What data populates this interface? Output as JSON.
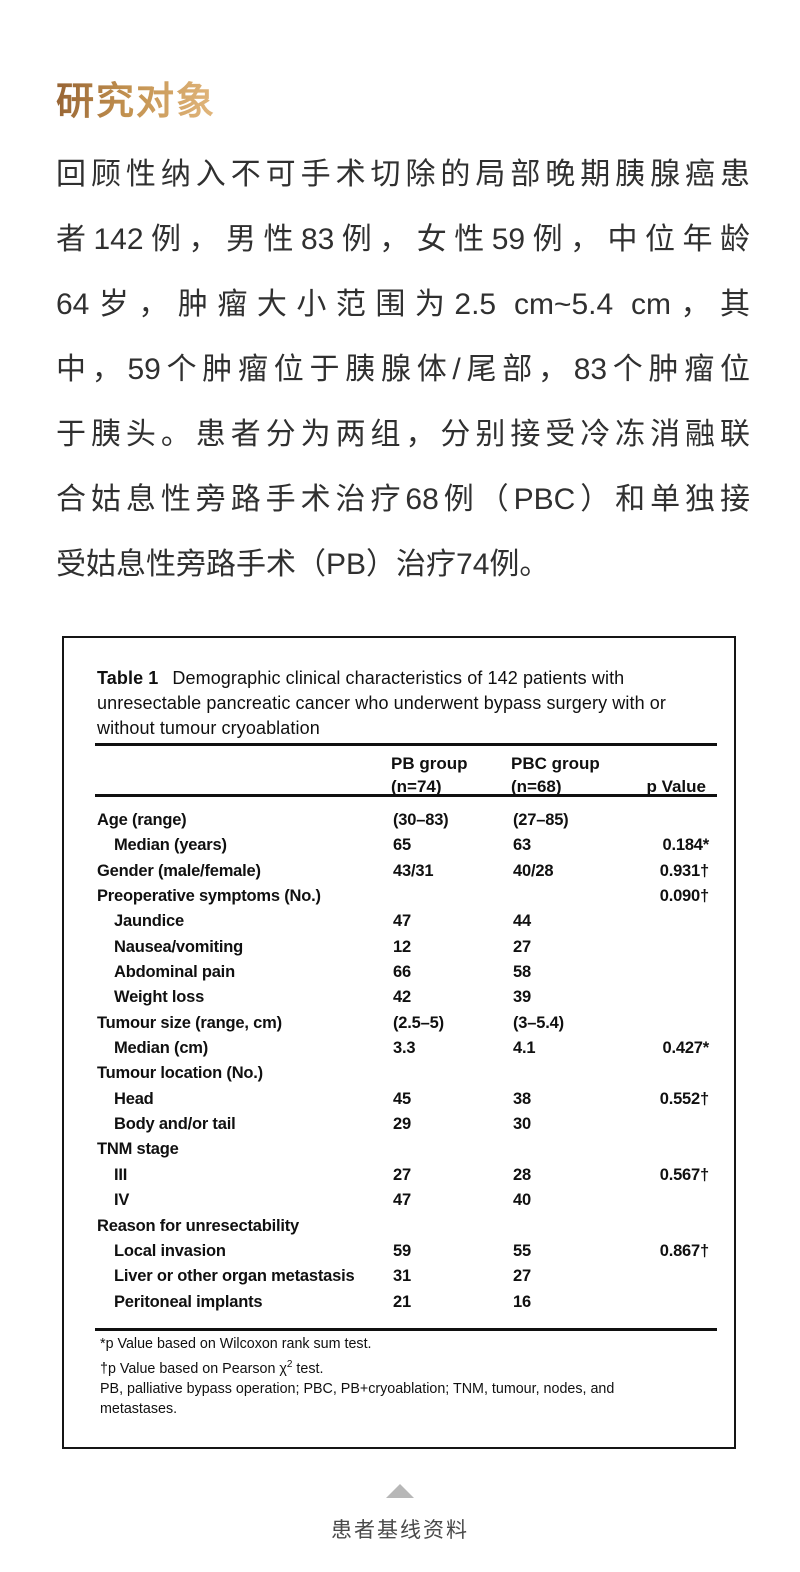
{
  "page": {
    "heading": "研究对象",
    "paragraph_lines": [
      "回顾性纳入不可手术切除的局部晚期胰腺癌患",
      "者142例，男性83例，女性59例，中位年龄",
      "64岁，肿瘤大小范围为2.5 cm~5.4 cm，其",
      "中，59个肿瘤位于胰腺体/尾部，83个肿瘤位",
      "于胰头。患者分为两组，分别接受冷冻消融联",
      "合姑息性旁路手术治疗68例（PBC）和单独接",
      "受姑息性旁路手术（PB）治疗74例。"
    ],
    "colors": {
      "heading_gold_start": "#956233",
      "heading_gold_end": "#e3b87e",
      "body_text": "#303030",
      "footer_arrow": "#b7b7b7",
      "footer_text": "#4a4a4a"
    },
    "footer": {
      "arrow_icon": "up-triangle",
      "label": "患者基线资料"
    }
  },
  "table": {
    "caption_label": "Table 1",
    "caption_line1": "Demographic clinical characteristics of 142 patients with",
    "caption_line2": "unresectable pancreatic cancer who underwent bypass surgery with or",
    "caption_line3": "without tumour cryoablation",
    "caption_full": "Table 1 Demographic clinical characteristics of 142 patients with unresectable pancreatic cancer who underwent bypass surgery with or without tumour cryoablation",
    "columns": {
      "pb_line1": "PB group",
      "pb_line2": "(n=74)",
      "pbc_line1": "PBC group",
      "pbc_line2": "(n=68)",
      "p": "p Value"
    },
    "rows": [
      {
        "label": "Age (range)",
        "indent": false,
        "pb": "(30–83)",
        "pbc": "(27–85)",
        "p": ""
      },
      {
        "label": "Median (years)",
        "indent": true,
        "pb": "65",
        "pbc": "63",
        "p": "0.184*"
      },
      {
        "label": "Gender (male/female)",
        "indent": false,
        "pb": "43/31",
        "pbc": "40/28",
        "p": "0.931†"
      },
      {
        "label": "Preoperative symptoms (No.)",
        "indent": false,
        "pb": "",
        "pbc": "",
        "p": "0.090†"
      },
      {
        "label": "Jaundice",
        "indent": true,
        "pb": "47",
        "pbc": "44",
        "p": ""
      },
      {
        "label": "Nausea/vomiting",
        "indent": true,
        "pb": "12",
        "pbc": "27",
        "p": ""
      },
      {
        "label": "Abdominal pain",
        "indent": true,
        "pb": "66",
        "pbc": "58",
        "p": ""
      },
      {
        "label": "Weight loss",
        "indent": true,
        "pb": "42",
        "pbc": "39",
        "p": ""
      },
      {
        "label": "Tumour size (range, cm)",
        "indent": false,
        "pb": "(2.5–5)",
        "pbc": "(3–5.4)",
        "p": ""
      },
      {
        "label": "Median (cm)",
        "indent": true,
        "pb": "3.3",
        "pbc": "4.1",
        "p": "0.427*"
      },
      {
        "label": "Tumour location (No.)",
        "indent": false,
        "pb": "",
        "pbc": "",
        "p": ""
      },
      {
        "label": "Head",
        "indent": true,
        "pb": "45",
        "pbc": "38",
        "p": "0.552†"
      },
      {
        "label": "Body and/or tail",
        "indent": true,
        "pb": "29",
        "pbc": "30",
        "p": ""
      },
      {
        "label": "TNM stage",
        "indent": false,
        "pb": "",
        "pbc": "",
        "p": ""
      },
      {
        "label": "III",
        "indent": true,
        "pb": "27",
        "pbc": "28",
        "p": "0.567†"
      },
      {
        "label": "IV",
        "indent": true,
        "pb": "47",
        "pbc": "40",
        "p": ""
      },
      {
        "label": "Reason for unresectability",
        "indent": false,
        "pb": "",
        "pbc": "",
        "p": ""
      },
      {
        "label": "Local invasion",
        "indent": true,
        "pb": "59",
        "pbc": "55",
        "p": "0.867†"
      },
      {
        "label": "Liver or other organ metastasis",
        "indent": true,
        "pb": "31",
        "pbc": "27",
        "p": ""
      },
      {
        "label": "Peritoneal implants",
        "indent": true,
        "pb": "21",
        "pbc": "16",
        "p": ""
      }
    ],
    "footnotes": {
      "line1": "*p Value based on Wilcoxon rank sum test.",
      "line2_prefix": "†p Value based on Pearson χ",
      "line2_sup": "2",
      "line2_suffix": " test.",
      "line3": "PB, palliative bypass operation; PBC, PB+cryoablation; TNM, tumour, nodes, and",
      "line4": "metastases."
    }
  }
}
